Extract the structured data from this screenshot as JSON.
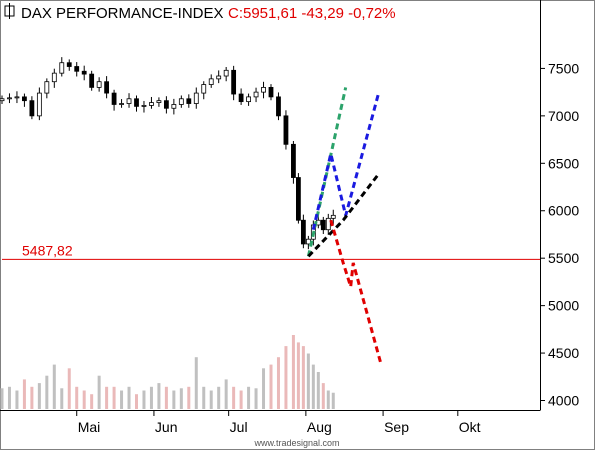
{
  "header": {
    "title": "DAX PERFORMANCE-INDEX",
    "quote": "C:5951,61 -43,29 -0,72%",
    "title_color": "#000000",
    "quote_color": "#e00000"
  },
  "footer": {
    "watermark": "www.tradesignal.com"
  },
  "colors": {
    "up_candle": "#ffffff",
    "down_candle": "#000000",
    "support_line": "#e00000",
    "volume_up": "#c0c0c0",
    "volume_down": "#eab9b9",
    "projection_green": "#2ca36b",
    "projection_blue": "#1a1ae0",
    "projection_black": "#000000",
    "projection_red": "#e00000"
  },
  "chart_data": {
    "type": "candlestick",
    "title": "DAX PERFORMANCE-INDEX",
    "last_quote": "C:5951,61 -43,29 -0,72%",
    "xlabel": "",
    "ylabel": "",
    "ylim": [
      3900,
      8200
    ],
    "y_ticks": [
      4000,
      4500,
      5000,
      5500,
      6000,
      6500,
      7000,
      7500
    ],
    "y_tick_labels": [
      "4000",
      "4500",
      "5000",
      "5500",
      "6000",
      "6500",
      "7000",
      "7500"
    ],
    "x_month_labels": [
      "Mai",
      "Jun",
      "Jul",
      "Aug",
      "Sep",
      "Okt"
    ],
    "x_range_days": [
      0,
      216
    ],
    "month_start_days": [
      30,
      61,
      91,
      122,
      153,
      183
    ],
    "grid": false,
    "support_level": {
      "value": 5487.82,
      "label": "5487,82"
    },
    "price_series": [
      [
        0,
        7180
      ],
      [
        3,
        7190
      ],
      [
        6,
        7200
      ],
      [
        9,
        7160
      ],
      [
        12,
        7000
      ],
      [
        15,
        7240
      ],
      [
        18,
        7360
      ],
      [
        21,
        7450
      ],
      [
        24,
        7560
      ],
      [
        27,
        7520
      ],
      [
        30,
        7470
      ],
      [
        33,
        7440
      ],
      [
        36,
        7300
      ],
      [
        39,
        7360
      ],
      [
        42,
        7240
      ],
      [
        45,
        7120
      ],
      [
        48,
        7130
      ],
      [
        51,
        7180
      ],
      [
        54,
        7100
      ],
      [
        57,
        7110
      ],
      [
        60,
        7140
      ],
      [
        63,
        7160
      ],
      [
        66,
        7080
      ],
      [
        69,
        7120
      ],
      [
        72,
        7180
      ],
      [
        75,
        7130
      ],
      [
        78,
        7240
      ],
      [
        81,
        7330
      ],
      [
        84,
        7390
      ],
      [
        87,
        7420
      ],
      [
        90,
        7480
      ],
      [
        93,
        7230
      ],
      [
        96,
        7150
      ],
      [
        99,
        7200
      ],
      [
        102,
        7250
      ],
      [
        105,
        7300
      ],
      [
        108,
        7200
      ],
      [
        111,
        7000
      ],
      [
        114,
        6700
      ],
      [
        117,
        6350
      ],
      [
        119,
        5900
      ],
      [
        121,
        5650
      ],
      [
        123,
        5700
      ],
      [
        125,
        5850
      ],
      [
        127,
        5900
      ],
      [
        129,
        5800
      ],
      [
        131,
        5920
      ],
      [
        133,
        5951.61
      ]
    ],
    "volume_series": [
      [
        0,
        0.28
      ],
      [
        3,
        0.3
      ],
      [
        6,
        0.25
      ],
      [
        9,
        0.4
      ],
      [
        12,
        0.3
      ],
      [
        15,
        0.35
      ],
      [
        18,
        0.45
      ],
      [
        21,
        0.6
      ],
      [
        24,
        0.28
      ],
      [
        27,
        0.55
      ],
      [
        30,
        0.3
      ],
      [
        33,
        0.25
      ],
      [
        36,
        0.2
      ],
      [
        39,
        0.45
      ],
      [
        42,
        0.3
      ],
      [
        45,
        0.3
      ],
      [
        48,
        0.25
      ],
      [
        51,
        0.3
      ],
      [
        54,
        0.2
      ],
      [
        57,
        0.25
      ],
      [
        60,
        0.3
      ],
      [
        63,
        0.35
      ],
      [
        66,
        0.3
      ],
      [
        69,
        0.25
      ],
      [
        72,
        0.28
      ],
      [
        75,
        0.3
      ],
      [
        78,
        0.7
      ],
      [
        81,
        0.3
      ],
      [
        84,
        0.25
      ],
      [
        87,
        0.3
      ],
      [
        90,
        0.4
      ],
      [
        93,
        0.3
      ],
      [
        96,
        0.25
      ],
      [
        99,
        0.3
      ],
      [
        102,
        0.28
      ],
      [
        105,
        0.55
      ],
      [
        108,
        0.6
      ],
      [
        111,
        0.7
      ],
      [
        114,
        0.85
      ],
      [
        117,
        1.0
      ],
      [
        119,
        0.9
      ],
      [
        121,
        0.85
      ],
      [
        123,
        0.75
      ],
      [
        125,
        0.6
      ],
      [
        127,
        0.5
      ],
      [
        129,
        0.35
      ],
      [
        131,
        0.25
      ],
      [
        133,
        0.22
      ]
    ],
    "projections": [
      {
        "color": "green",
        "points": [
          [
            123,
            5520
          ],
          [
            138,
            7300
          ]
        ]
      },
      {
        "color": "blue",
        "points": [
          [
            125,
            5800
          ],
          [
            132,
            6600
          ],
          [
            138,
            5950
          ],
          [
            151,
            7220
          ]
        ]
      },
      {
        "color": "black",
        "points": [
          [
            123,
            5520
          ],
          [
            137,
            5900
          ],
          [
            151,
            6380
          ]
        ]
      },
      {
        "color": "red",
        "points": [
          [
            132,
            5900
          ],
          [
            137,
            5450
          ],
          [
            140,
            5200
          ],
          [
            141,
            5450
          ],
          [
            152,
            4400
          ]
        ]
      }
    ]
  }
}
